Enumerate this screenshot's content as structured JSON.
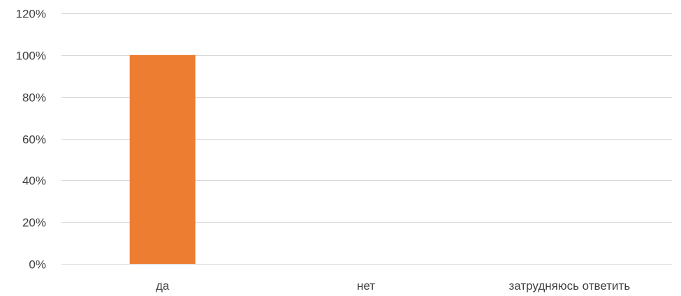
{
  "chart_data": {
    "type": "bar",
    "categories": [
      "да",
      "нет",
      "затрудняюсь ответить"
    ],
    "values": [
      100,
      0,
      0
    ],
    "ylim": [
      0,
      120
    ],
    "yticks": [
      0,
      20,
      40,
      60,
      80,
      100,
      120
    ],
    "ytick_suffix": "%",
    "grid": true,
    "legend": "none",
    "bar_color": "#ED7D31",
    "grid_color": "#D9D9D9",
    "text_color": "#404040"
  }
}
